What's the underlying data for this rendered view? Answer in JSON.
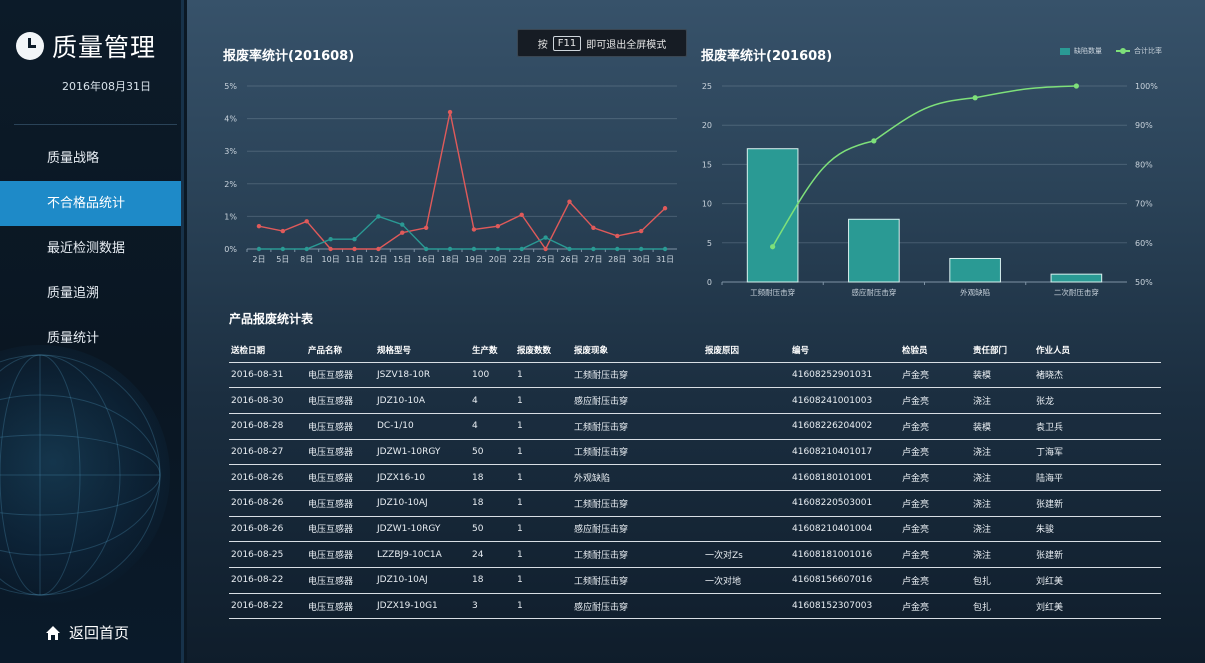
{
  "sidebar": {
    "title": "质量管理",
    "date": "2016年08月31日",
    "items": [
      {
        "label": "质量战略",
        "active": false
      },
      {
        "label": "不合格品统计",
        "active": true
      },
      {
        "label": "最近检测数据",
        "active": false
      },
      {
        "label": "质量追溯",
        "active": false
      },
      {
        "label": "质量统计",
        "active": false
      }
    ],
    "home_label": "返回首页"
  },
  "hint": {
    "prefix": "按",
    "key": "F11",
    "suffix": "即可退出全屏模式"
  },
  "chart_data": [
    {
      "type": "line",
      "title": "报废率统计(201608)",
      "categories": [
        "2日",
        "5日",
        "8日",
        "10日",
        "11日",
        "12日",
        "15日",
        "16日",
        "18日",
        "19日",
        "20日",
        "22日",
        "25日",
        "26日",
        "27日",
        "28日",
        "30日",
        "31日"
      ],
      "ylim": [
        0,
        5
      ],
      "yticks": [
        "0%",
        "1%",
        "2%",
        "3%",
        "4%",
        "5%"
      ],
      "series": [
        {
          "color": "#e05a5a",
          "values": [
            0.7,
            0.55,
            0.85,
            0.0,
            0.0,
            0.0,
            0.5,
            0.65,
            4.2,
            0.6,
            0.7,
            1.05,
            0.0,
            1.45,
            0.65,
            0.4,
            0.55,
            1.25
          ]
        },
        {
          "color": "#2a9a94",
          "values": [
            0.0,
            0.0,
            0.0,
            0.3,
            0.3,
            1.0,
            0.75,
            0.0,
            0.0,
            0.0,
            0.0,
            0.0,
            0.35,
            0.0,
            0.0,
            0.0,
            0.0,
            0.0
          ]
        }
      ],
      "grid": true
    },
    {
      "type": "bar",
      "title": "报废率统计(201608)",
      "categories": [
        "工频耐压击穿",
        "感应耐压击穿",
        "外观缺陷",
        "二次耐压击穿"
      ],
      "series": [
        {
          "name": "缺陷数量",
          "type": "bar",
          "color": "#2a9a94",
          "values": [
            17,
            8,
            3,
            1
          ]
        },
        {
          "name": "合计比率",
          "type": "line",
          "color": "#7ee07a",
          "values": [
            59,
            86,
            97,
            100
          ]
        }
      ],
      "ylim": [
        0,
        25
      ],
      "yticks": [
        "0",
        "5",
        "10",
        "15",
        "20",
        "25"
      ],
      "y2lim": [
        50,
        100
      ],
      "y2ticks": [
        "50%",
        "60%",
        "70%",
        "80%",
        "90%",
        "100%"
      ],
      "legend": "top-right",
      "grid": true
    }
  ],
  "table": {
    "title": "产品报废统计表",
    "columns": [
      "送检日期",
      "产品名称",
      "规格型号",
      "生产数",
      "报废数数",
      "报废现象",
      "报废原因",
      "编号",
      "检验员",
      "责任部门",
      "作业人员"
    ],
    "rows": [
      [
        "2016-08-31",
        "电压互感器",
        "JSZV18-10R",
        "100",
        "1",
        "工频耐压击穿",
        "",
        "41608252901031",
        "卢金亮",
        "装模",
        "褚晓杰"
      ],
      [
        "2016-08-30",
        "电压互感器",
        "JDZ10-10A",
        "4",
        "1",
        "感应耐压击穿",
        "",
        "41608241001003",
        "卢金亮",
        "浇注",
        "张龙"
      ],
      [
        "2016-08-28",
        "电压互感器",
        "DC-1/10",
        "4",
        "1",
        "工频耐压击穿",
        "",
        "41608226204002",
        "卢金亮",
        "装模",
        "袁卫兵"
      ],
      [
        "2016-08-27",
        "电压互感器",
        "JDZW1-10RGY",
        "50",
        "1",
        "工频耐压击穿",
        "",
        "41608210401017",
        "卢金亮",
        "浇注",
        "丁海军"
      ],
      [
        "2016-08-26",
        "电压互感器",
        "JDZX16-10",
        "18",
        "1",
        "外观缺陷",
        "",
        "41608180101001",
        "卢金亮",
        "浇注",
        "陆海平"
      ],
      [
        "2016-08-26",
        "电压互感器",
        "JDZ10-10AJ",
        "18",
        "1",
        "工频耐压击穿",
        "",
        "41608220503001",
        "卢金亮",
        "浇注",
        "张建新"
      ],
      [
        "2016-08-26",
        "电压互感器",
        "JDZW1-10RGY",
        "50",
        "1",
        "感应耐压击穿",
        "",
        "41608210401004",
        "卢金亮",
        "浇注",
        "朱骏"
      ],
      [
        "2016-08-25",
        "电压互感器",
        "LZZBJ9-10C1A",
        "24",
        "1",
        "工频耐压击穿",
        "一次对Zs",
        "41608181001016",
        "卢金亮",
        "浇注",
        "张建新"
      ],
      [
        "2016-08-22",
        "电压互感器",
        "JDZ10-10AJ",
        "18",
        "1",
        "工频耐压击穿",
        "一次对地",
        "41608156607016",
        "卢金亮",
        "包扎",
        "刘红美"
      ],
      [
        "2016-08-22",
        "电压互感器",
        "JDZX19-10G1",
        "3",
        "1",
        "感应耐压击穿",
        "",
        "41608152307003",
        "卢金亮",
        "包扎",
        "刘红美"
      ]
    ]
  }
}
